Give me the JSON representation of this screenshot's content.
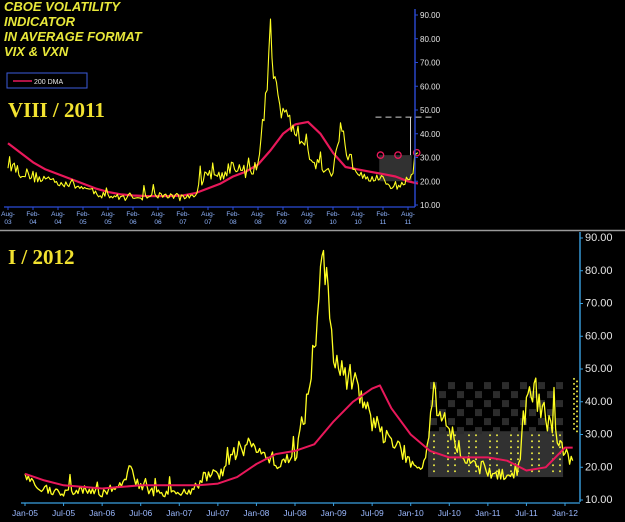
{
  "header": {
    "title_lines": [
      "CBOE VOLATILITY",
      "INDICATOR",
      "IN AVERAGE FORMAT",
      "VIX & VXN"
    ],
    "stamp_top": "VIII / 2011",
    "stamp_bottom": "I / 2012"
  },
  "colors": {
    "background": "#000000",
    "price_series": "#ffff22",
    "ma_series": "#e8185a",
    "axis_top": "#2b4bd6",
    "axis_bottom": "#3aa0e0",
    "divider": "#9a9a9a",
    "box_fill": "#3a3a3a",
    "dots": "#e8e845"
  },
  "chart_data": [
    {
      "type": "line",
      "panel": "top",
      "legend": [
        "200 DMA"
      ],
      "legend_position": "top-left",
      "ylim": [
        10,
        90
      ],
      "y_ticks": [
        "10.00",
        "20.00",
        "30.00",
        "40.00",
        "50.00",
        "60.00",
        "70.00",
        "80.00",
        "90.00"
      ],
      "x_ticks": [
        [
          "Aug-",
          "03"
        ],
        [
          "Feb-",
          "04"
        ],
        [
          "Aug-",
          "04"
        ],
        [
          "Feb-",
          "05"
        ],
        [
          "Aug-",
          "05"
        ],
        [
          "Feb-",
          "06"
        ],
        [
          "Aug-",
          "06"
        ],
        [
          "Feb-",
          "07"
        ],
        [
          "Aug-",
          "07"
        ],
        [
          "Feb-",
          "08"
        ],
        [
          "Aug-",
          "08"
        ],
        [
          "Feb-",
          "09"
        ],
        [
          "Aug-",
          "09"
        ],
        [
          "Feb-",
          "10"
        ],
        [
          "Aug-",
          "10"
        ],
        [
          "Feb-",
          "11"
        ],
        [
          "Aug-",
          "11"
        ]
      ],
      "price_points": [
        [
          0,
          28
        ],
        [
          0.5,
          24
        ],
        [
          1,
          22
        ],
        [
          1.5,
          21
        ],
        [
          2,
          20
        ],
        [
          2.5,
          19
        ],
        [
          3,
          17
        ],
        [
          3.5,
          15
        ],
        [
          4,
          14
        ],
        [
          4.5,
          13
        ],
        [
          5,
          14
        ],
        [
          5.5,
          13
        ],
        [
          6,
          14
        ],
        [
          6.5,
          14
        ],
        [
          7,
          13
        ],
        [
          7.5,
          15
        ],
        [
          8,
          24
        ],
        [
          8.5,
          22
        ],
        [
          9,
          27
        ],
        [
          9.5,
          24
        ],
        [
          10,
          26
        ],
        [
          10.3,
          55
        ],
        [
          10.5,
          80
        ],
        [
          10.8,
          55
        ],
        [
          11.2,
          45
        ],
        [
          11.6,
          40
        ],
        [
          12,
          32
        ],
        [
          12.5,
          26
        ],
        [
          13,
          23
        ],
        [
          13.3,
          45
        ],
        [
          13.6,
          30
        ],
        [
          14,
          25
        ],
        [
          14.5,
          22
        ],
        [
          15,
          20
        ],
        [
          15.5,
          18
        ],
        [
          16,
          20
        ],
        [
          16.4,
          32
        ]
      ],
      "ma_points": [
        [
          0,
          36
        ],
        [
          0.5,
          32
        ],
        [
          1,
          28
        ],
        [
          1.5,
          25
        ],
        [
          2,
          23
        ],
        [
          2.5,
          21
        ],
        [
          3,
          19
        ],
        [
          3.5,
          17
        ],
        [
          4,
          15.5
        ],
        [
          4.5,
          14.5
        ],
        [
          5,
          14
        ],
        [
          5.5,
          13.8
        ],
        [
          6,
          13.7
        ],
        [
          6.5,
          13.8
        ],
        [
          7,
          14
        ],
        [
          7.5,
          15
        ],
        [
          8,
          17
        ],
        [
          8.5,
          19
        ],
        [
          9,
          22
        ],
        [
          9.5,
          24
        ],
        [
          10,
          27
        ],
        [
          10.5,
          33
        ],
        [
          11,
          40
        ],
        [
          11.5,
          44
        ],
        [
          12,
          45
        ],
        [
          12.5,
          40
        ],
        [
          13,
          32
        ],
        [
          13.5,
          26
        ],
        [
          14,
          25
        ],
        [
          14.5,
          24
        ],
        [
          15,
          23
        ],
        [
          15.5,
          22
        ],
        [
          16,
          20
        ],
        [
          16.4,
          19
        ]
      ]
    },
    {
      "type": "line",
      "panel": "bottom",
      "ylim": [
        10,
        90
      ],
      "y_ticks": [
        "10.00",
        "20.00",
        "30.00",
        "40.00",
        "50.00",
        "60.00",
        "70.00",
        "80.00",
        "90.00"
      ],
      "x_ticks": [
        "Jan-05",
        "Jul-05",
        "Jan-06",
        "Jul-06",
        "Jan-07",
        "Jul-07",
        "Jan-08",
        "Jul-08",
        "Jan-09",
        "Jul-09",
        "Jan-10",
        "Jul-10",
        "Jan-11",
        "Jul-11",
        "Jan-12"
      ],
      "price_points": [
        [
          0,
          17
        ],
        [
          0.3,
          15
        ],
        [
          0.6,
          13
        ],
        [
          1,
          12
        ],
        [
          1.5,
          13
        ],
        [
          2,
          12
        ],
        [
          2.5,
          15
        ],
        [
          2.7,
          19
        ],
        [
          3,
          14
        ],
        [
          3.5,
          12
        ],
        [
          4,
          12
        ],
        [
          4.5,
          14
        ],
        [
          4.8,
          19
        ],
        [
          5,
          17
        ],
        [
          5.5,
          25
        ],
        [
          6,
          27
        ],
        [
          6.5,
          22
        ],
        [
          7,
          22
        ],
        [
          7.3,
          40
        ],
        [
          7.5,
          60
        ],
        [
          7.7,
          80
        ],
        [
          7.9,
          70
        ],
        [
          8,
          52
        ],
        [
          8.3,
          47
        ],
        [
          8.6,
          46
        ],
        [
          9,
          33
        ],
        [
          9.5,
          29
        ],
        [
          10,
          22
        ],
        [
          10.3,
          19
        ],
        [
          10.6,
          42
        ],
        [
          10.8,
          36
        ],
        [
          11,
          30
        ],
        [
          11.5,
          22
        ],
        [
          12,
          19
        ],
        [
          12.5,
          17
        ],
        [
          12.8,
          20
        ],
        [
          13,
          40
        ],
        [
          13.2,
          44
        ],
        [
          13.5,
          35
        ],
        [
          13.8,
          30
        ],
        [
          14,
          25
        ],
        [
          14.2,
          22
        ]
      ],
      "ma_points": [
        [
          0,
          18
        ],
        [
          0.5,
          16
        ],
        [
          1,
          14.5
        ],
        [
          1.5,
          14
        ],
        [
          2,
          13.5
        ],
        [
          2.5,
          14
        ],
        [
          3,
          14.5
        ],
        [
          3.5,
          14.5
        ],
        [
          4,
          14.5
        ],
        [
          4.5,
          14.5
        ],
        [
          5,
          15
        ],
        [
          5.5,
          17
        ],
        [
          6,
          21
        ],
        [
          6.5,
          24
        ],
        [
          7,
          25
        ],
        [
          7.5,
          27
        ],
        [
          8,
          34
        ],
        [
          8.5,
          40
        ],
        [
          9,
          44
        ],
        [
          9.2,
          45
        ],
        [
          9.5,
          38
        ],
        [
          10,
          30
        ],
        [
          10.5,
          25
        ],
        [
          11,
          23
        ],
        [
          11.5,
          23
        ],
        [
          12,
          23
        ],
        [
          12.5,
          22
        ],
        [
          13,
          19
        ],
        [
          13.5,
          20
        ],
        [
          14,
          26
        ],
        [
          14.2,
          26
        ]
      ]
    }
  ]
}
